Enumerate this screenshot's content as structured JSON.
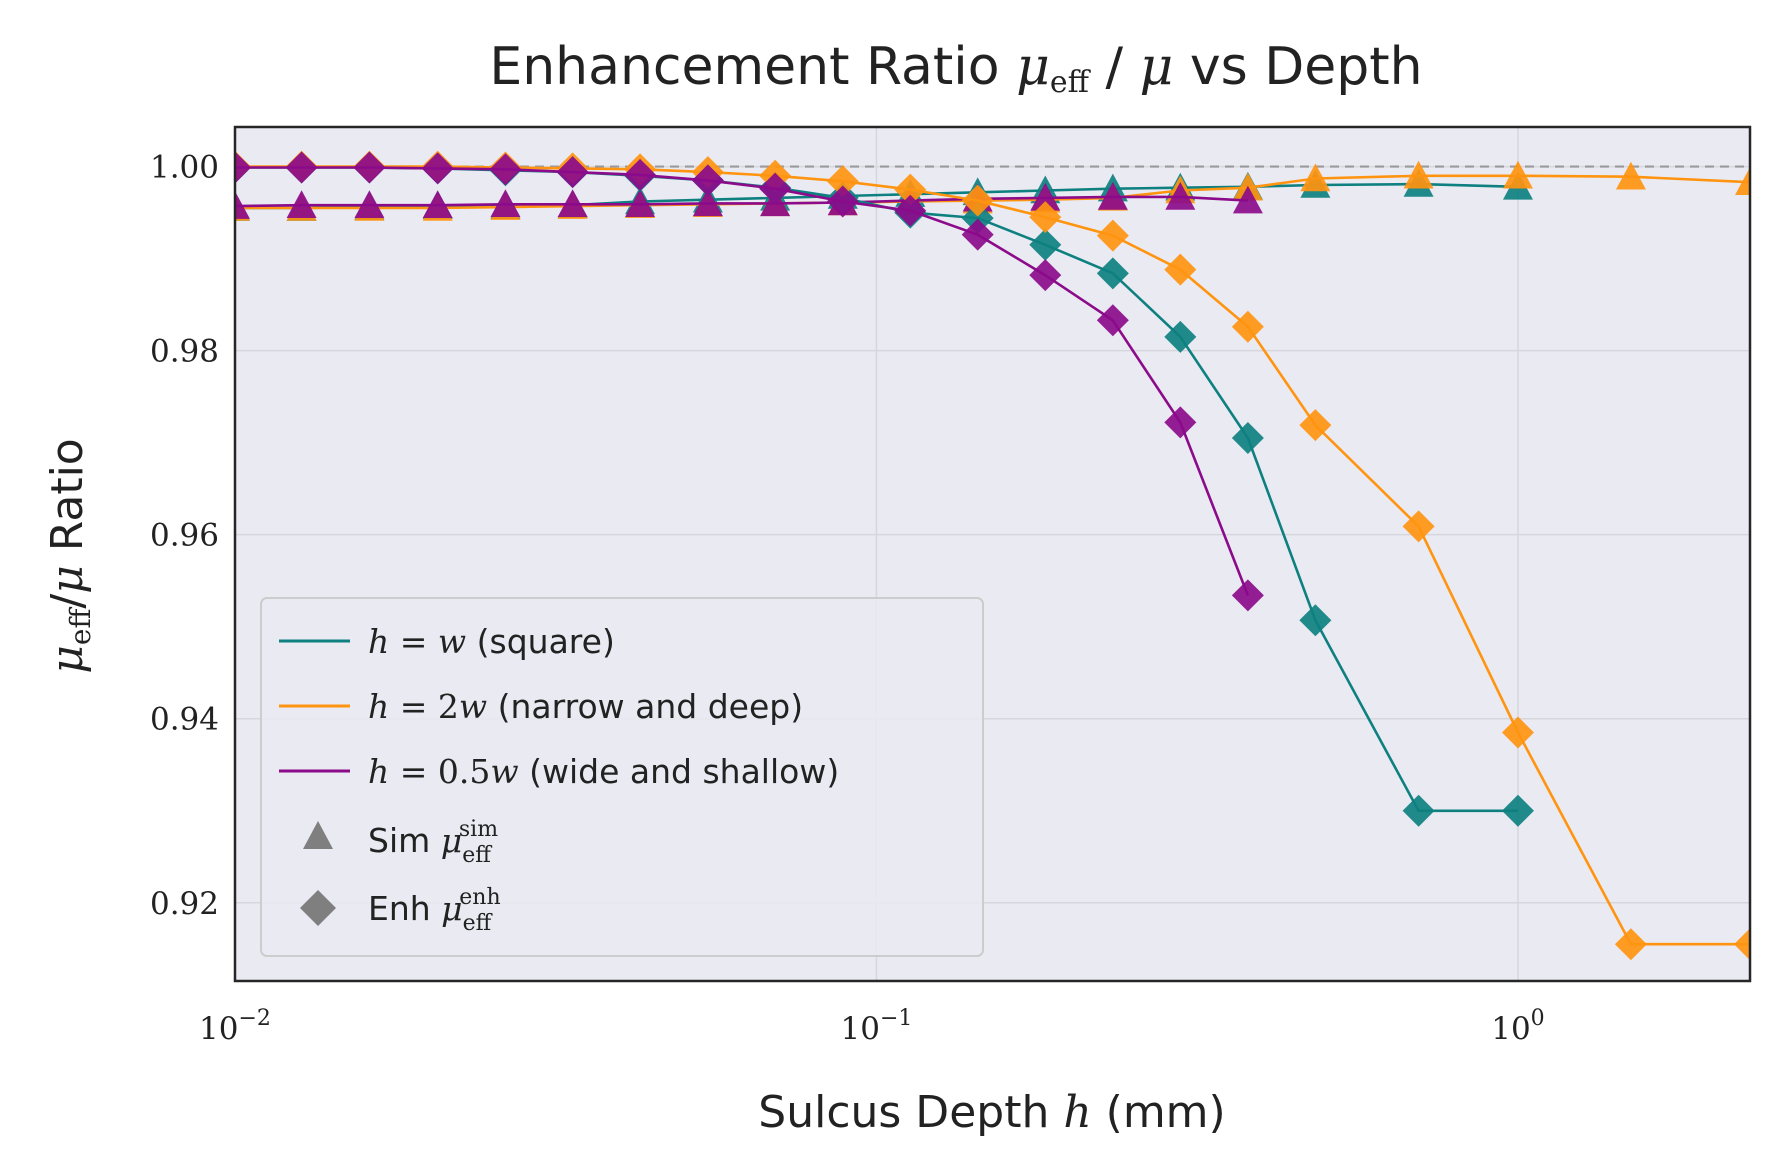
{
  "chart_data": {
    "type": "line",
    "title": "Enhancement Ratio μ_eff / μ vs Depth",
    "xlabel": "Sulcus Depth h (mm)",
    "ylabel": "μ_eff/μ Ratio",
    "xscale": "log",
    "xlim": [
      0.01,
      2.3
    ],
    "ylim": [
      0.9115,
      1.0043
    ],
    "x_ticks": [
      "10^-2",
      "10^-1",
      "10^0"
    ],
    "y_ticks": [
      "0.92",
      "0.94",
      "0.96",
      "0.98",
      "1.00"
    ],
    "grid": true,
    "reference_line": 1.0,
    "legend_position": "lower-left",
    "legend": [
      {
        "label": "h = w (square)",
        "kind": "line",
        "color": "#0e8080"
      },
      {
        "label": "h = 2w (narrow and deep)",
        "kind": "line",
        "color": "#ff9410"
      },
      {
        "label": "h = 0.5w (wide and shallow)",
        "kind": "line",
        "color": "#8b0b8b"
      },
      {
        "label": "Sim μ_eff^sim",
        "kind": "triangle-marker",
        "color": "#7f7f7f"
      },
      {
        "label": "Enh μ_eff^enh",
        "kind": "diamond-marker",
        "color": "#7f7f7f"
      }
    ],
    "series": [
      {
        "group": "h = w (square)",
        "method": "Sim",
        "marker": "triangle",
        "color": "#0e8080",
        "x": [
          0.01,
          0.0127,
          0.0162,
          0.0207,
          0.0264,
          0.0336,
          0.0428,
          0.0546,
          0.0695,
          0.0886,
          0.1129,
          0.1438,
          0.1833,
          0.2336,
          0.2976,
          0.3793,
          0.4833,
          0.7,
          1.0
        ],
        "y": [
          0.9955,
          0.9955,
          0.9956,
          0.9957,
          0.9957,
          0.9958,
          0.9962,
          0.9964,
          0.9966,
          0.9968,
          0.997,
          0.9972,
          0.9974,
          0.9976,
          0.9977,
          0.9978,
          0.998,
          0.9981,
          0.9978
        ]
      },
      {
        "group": "h = 2w (narrow and deep)",
        "method": "Sim",
        "marker": "triangle",
        "color": "#ff9410",
        "x": [
          0.01,
          0.0127,
          0.0162,
          0.0207,
          0.0264,
          0.0336,
          0.0428,
          0.0546,
          0.0695,
          0.0886,
          0.1129,
          0.1438,
          0.1833,
          0.2336,
          0.2976,
          0.3793,
          0.4833,
          0.7,
          1.0,
          1.5,
          2.3
        ],
        "y": [
          0.9955,
          0.9955,
          0.9955,
          0.9955,
          0.9956,
          0.9957,
          0.9958,
          0.9959,
          0.996,
          0.9961,
          0.9962,
          0.9963,
          0.9964,
          0.9966,
          0.9974,
          0.9977,
          0.9987,
          0.999,
          0.999,
          0.9989,
          0.9983
        ]
      },
      {
        "group": "h = 0.5w (wide and shallow)",
        "method": "Sim",
        "marker": "triangle",
        "color": "#8b0b8b",
        "x": [
          0.01,
          0.0127,
          0.0162,
          0.0207,
          0.0264,
          0.0336,
          0.0428,
          0.0546,
          0.0695,
          0.0886,
          0.1129,
          0.1438,
          0.1833,
          0.2336,
          0.2976,
          0.3793
        ],
        "y": [
          0.9957,
          0.9958,
          0.9958,
          0.9958,
          0.9959,
          0.9959,
          0.9959,
          0.996,
          0.996,
          0.9961,
          0.9963,
          0.9965,
          0.9966,
          0.9967,
          0.9967,
          0.9963
        ]
      },
      {
        "group": "h = w (square)",
        "method": "Enh",
        "marker": "diamond",
        "color": "#0e8080",
        "x": [
          0.01,
          0.0127,
          0.0162,
          0.0207,
          0.0264,
          0.0336,
          0.0428,
          0.0546,
          0.0695,
          0.0886,
          0.1129,
          0.1438,
          0.1833,
          0.2336,
          0.2976,
          0.3793,
          0.4833,
          0.7,
          1.0
        ],
        "y": [
          0.9999,
          0.9999,
          0.9999,
          0.9998,
          0.9996,
          0.9994,
          0.999,
          0.9985,
          0.9977,
          0.9966,
          0.995,
          0.9944,
          0.9915,
          0.9884,
          0.9815,
          0.9705,
          0.9507,
          0.93,
          0.93
        ]
      },
      {
        "group": "h = 2w (narrow and deep)",
        "method": "Enh",
        "marker": "diamond",
        "color": "#ff9410",
        "x": [
          0.01,
          0.0127,
          0.0162,
          0.0207,
          0.0264,
          0.0336,
          0.0428,
          0.0546,
          0.0695,
          0.0886,
          0.1129,
          0.1438,
          0.1833,
          0.2336,
          0.2976,
          0.3793,
          0.4833,
          0.7,
          1.0,
          1.5,
          2.3
        ],
        "y": [
          1.0,
          1.0,
          1.0,
          1.0,
          0.9999,
          0.9998,
          0.9997,
          0.9994,
          0.999,
          0.9984,
          0.9975,
          0.9963,
          0.9945,
          0.9925,
          0.9888,
          0.9826,
          0.9719,
          0.9609,
          0.9385,
          0.9155,
          0.9155
        ]
      },
      {
        "group": "h = 0.5w (wide and shallow)",
        "method": "Enh",
        "marker": "diamond",
        "color": "#8b0b8b",
        "x": [
          0.01,
          0.0127,
          0.0162,
          0.0207,
          0.0264,
          0.0336,
          0.0428,
          0.0546,
          0.0695,
          0.0886,
          0.1129,
          0.1438,
          0.1833,
          0.2336,
          0.2976,
          0.3793
        ],
        "y": [
          0.9999,
          0.9999,
          0.9999,
          0.9998,
          0.9997,
          0.9994,
          0.9991,
          0.9985,
          0.9976,
          0.9962,
          0.9952,
          0.9926,
          0.9882,
          0.9833,
          0.9722,
          0.9534
        ]
      }
    ]
  }
}
